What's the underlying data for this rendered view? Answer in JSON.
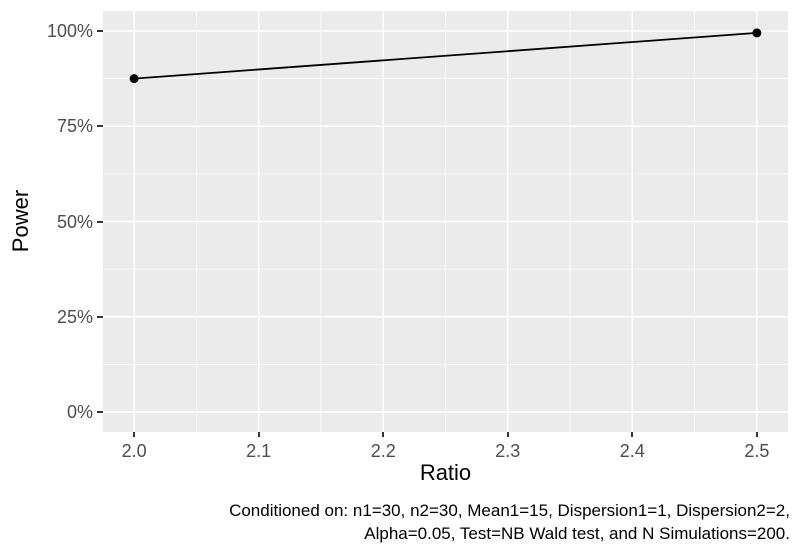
{
  "chart_data": {
    "type": "line",
    "title": "",
    "xlabel": "Ratio",
    "ylabel": "Power",
    "x": [
      2.0,
      2.5
    ],
    "y_percent": [
      87.5,
      99.5
    ],
    "series": [
      {
        "name": "Power",
        "x": [
          2.0,
          2.5
        ],
        "y_percent": [
          87.5,
          99.5
        ]
      }
    ],
    "x_ticks": {
      "values": [
        2.0,
        2.1,
        2.2,
        2.3,
        2.4,
        2.5
      ],
      "labels": [
        "2.0",
        "2.1",
        "2.2",
        "2.3",
        "2.4",
        "2.5"
      ]
    },
    "y_ticks": {
      "values": [
        0,
        25,
        50,
        75,
        100
      ],
      "labels": [
        "0%",
        "25%",
        "50%",
        "75%",
        "100%"
      ]
    },
    "x_minor": [
      2.05,
      2.15,
      2.25,
      2.35,
      2.45
    ],
    "y_minor": [
      12.5,
      37.5,
      62.5,
      87.5
    ],
    "x_domain": [
      1.975,
      2.525
    ],
    "y_domain": [
      -5.25,
      105.25
    ],
    "grid": true,
    "legend": "none",
    "caption_lines": [
      "Conditioned on: n1=30, n2=30, Mean1=15, Dispersion1=1, Dispersion2=2,",
      "Alpha=0.05, Test=NB Wald test, and N Simulations=200."
    ],
    "colors": {
      "panel_background": "#EBEBEB",
      "grid": "#FFFFFF",
      "line": "#000000",
      "point": "#000000",
      "tick_text": "#4D4D4D",
      "title_text": "#000000",
      "tick_mark": "#333333"
    }
  }
}
